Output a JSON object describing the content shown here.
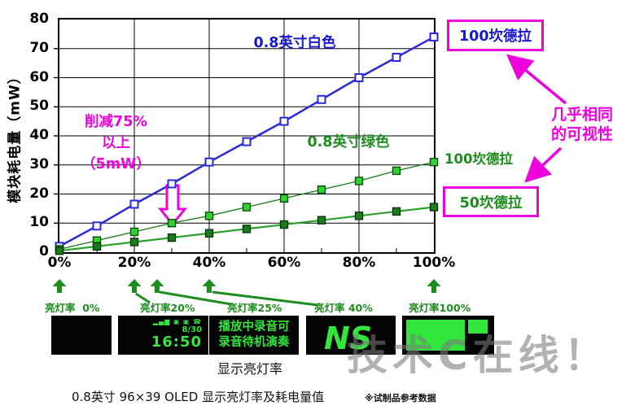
{
  "chart_data": {
    "type": "line",
    "x": [
      0,
      10,
      20,
      30,
      40,
      50,
      60,
      70,
      80,
      90,
      100
    ],
    "x_tick_labels": [
      "0%",
      "20%",
      "40%",
      "60%",
      "80%",
      "100%"
    ],
    "xlabel": "显示亮灯率",
    "ylabel": "模块耗电量（mW）",
    "ylim": [
      0,
      80
    ],
    "y_tick_step": 10,
    "grid": true,
    "legend_position": "inline-annotations",
    "series": [
      {
        "name": "0.8英寸白色（100坎德拉）",
        "color": "#2a2ad9",
        "marker_fill": "#ffffff",
        "marker_edge": "#2a2ad9",
        "marker_edge_width": 2,
        "line_width": 2.5,
        "values": [
          2,
          9,
          16.5,
          23.5,
          31,
          38,
          45,
          52.5,
          60,
          67,
          74
        ]
      },
      {
        "name": "0.8英寸绿色（100坎德拉）",
        "color": "#157a15",
        "marker_fill": "#2fd32f",
        "marker_edge": "#0b4d0b",
        "marker_edge_width": 1.4,
        "line_width": 1.3,
        "values": [
          1,
          4,
          7,
          10,
          12.5,
          15.5,
          18.5,
          21.5,
          24.5,
          28,
          31
        ]
      },
      {
        "name": "0.8英寸绿色（50坎德拉）",
        "color": "#2aa12a",
        "marker_fill": "#1d7a1d",
        "marker_edge": "#083808",
        "marker_edge_width": 1.4,
        "line_width": 2.2,
        "values": [
          0.5,
          2,
          3.5,
          5,
          6.5,
          8,
          9.5,
          11,
          12.5,
          14,
          15.5
        ]
      }
    ]
  },
  "labels": {
    "series_white": "0.8英寸白色",
    "series_green": "0.8英寸绿色",
    "cd100_white": "100坎德拉",
    "cd100_green": "100坎德拉",
    "cd50_green": "50坎德拉",
    "visibility_line1": "几乎相同",
    "visibility_line2": "的可视性",
    "reduction_line1": "削减75%",
    "reduction_line2": "以上",
    "reduction_line3": "（5mW）"
  },
  "footer": {
    "lighting_labels": [
      "亮灯率  0%",
      "亮灯率20%",
      "亮灯率25%",
      "亮灯率 40%",
      "亮灯率100%"
    ],
    "display2": {
      "status_icons": "▂▄▆ ▣ ▣ ☎",
      "date": "8/30",
      "time": "16:50"
    },
    "display3": {
      "line1": "播放中录音可",
      "line2": "录音待机演奏"
    },
    "display4": {
      "logo_text": "NS"
    },
    "xlabel": "显示亮灯率",
    "caption": "0.8英寸 96×39 OLED 显示亮灯率及耗电量值",
    "caption_note": "※试制品参考数据",
    "watermark": "技术C在线！"
  },
  "colors": {
    "magenta": "#ee00dd",
    "blue_text": "#1818cf",
    "green_text": "#1e8c1e",
    "oled_green": "#32e63c",
    "watermark_gray": "#7b7b7b",
    "white_series": "#2a2ad9",
    "green100_marker": "#2fd32f",
    "green50_marker": "#1d7a1d"
  }
}
